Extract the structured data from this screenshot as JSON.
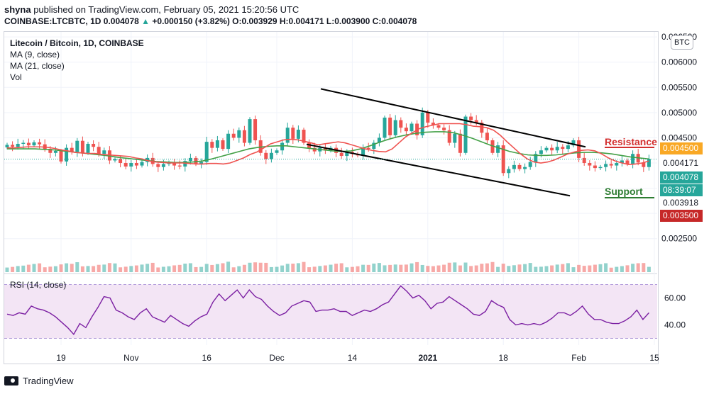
{
  "header": {
    "publisher": "shyna",
    "published_text": " published on TradingView.com, February 05, 2021 15:20:56 UTC",
    "symbol_line_pre": "COINBASE:LTCBTC, 1D 0.004078 ",
    "arrow": "▲",
    "symbol_line_post": "+0.000150 (+3.82%) O:0.003929 H:0.004171 L:0.003900 C:0.004078"
  },
  "legend": {
    "title": "Litecoin / Bitcoin, 1D, COINBASE",
    "ma9": "MA (9, close)",
    "ma21": "MA (21, close)",
    "vol": "Vol"
  },
  "currency_button": "BTC",
  "annotations": {
    "resistance": "Resistance",
    "support": "Support"
  },
  "price_tags": {
    "resistance": "0.004500",
    "high": "0.004171",
    "current": "0.004078",
    "countdown": "08:39:07",
    "ma": "0.003918",
    "support": "0.003500"
  },
  "rsi_label": "RSI (14, close)",
  "brand": "TradingView",
  "colors": {
    "up": "#26a69a",
    "down": "#ef5350",
    "ma9": "#ef5350",
    "ma21": "#43a047",
    "rsi": "#7b1fa2",
    "rsi_band": "#f3e5f5",
    "resistance": "#d32f2f",
    "support": "#2e7d32"
  },
  "chart_data": {
    "type": "candlestick",
    "title": "Litecoin / Bitcoin, 1D, COINBASE",
    "price_axis": {
      "ticks": [
        0.0025,
        0.003,
        0.0035,
        0.004,
        0.0045,
        0.005,
        0.0055,
        0.006,
        0.0065
      ],
      "tick_labels": [
        "0.002500",
        "",
        "0.003500",
        "",
        "0.004500",
        "0.005000",
        "0.005500",
        "0.006000",
        "0.006500"
      ],
      "range": [
        0.00185,
        0.0066
      ]
    },
    "time_axis": {
      "labels": [
        "19",
        "Nov",
        "16",
        "Dec",
        "14",
        "2021",
        "18",
        "Feb",
        "15"
      ],
      "label_index": [
        10,
        23,
        37,
        50,
        64,
        78,
        92,
        106,
        120
      ],
      "bar_count": 120
    },
    "close": [
      0.00436,
      0.00432,
      0.00438,
      0.0044,
      0.00435,
      0.00441,
      0.00437,
      0.00428,
      0.0042,
      0.00424,
      0.00403,
      0.0043,
      0.00422,
      0.00444,
      0.0042,
      0.00438,
      0.00432,
      0.00418,
      0.00425,
      0.00405,
      0.00408,
      0.004,
      0.00393,
      0.004,
      0.00395,
      0.00402,
      0.0041,
      0.00398,
      0.00392,
      0.00398,
      0.00401,
      0.00395,
      0.00393,
      0.00404,
      0.0041,
      0.00398,
      0.00402,
      0.00442,
      0.0043,
      0.00445,
      0.00428,
      0.00458,
      0.0045,
      0.00465,
      0.0044,
      0.00487,
      0.00445,
      0.0042,
      0.00408,
      0.0042,
      0.00425,
      0.0044,
      0.0047,
      0.00448,
      0.00466,
      0.0044,
      0.0043,
      0.00423,
      0.0043,
      0.00425,
      0.0043,
      0.0042,
      0.00414,
      0.00422,
      0.00418,
      0.00415,
      0.0043,
      0.00428,
      0.0044,
      0.0045,
      0.0049,
      0.00455,
      0.00485,
      0.0047,
      0.00463,
      0.00478,
      0.00455,
      0.005,
      0.0048,
      0.00475,
      0.0047,
      0.00465,
      0.0044,
      0.00458,
      0.0042,
      0.00492,
      0.00485,
      0.0048,
      0.0046,
      0.00445,
      0.0042,
      0.00435,
      0.0038,
      0.00388,
      0.00396,
      0.00388,
      0.00392,
      0.00402,
      0.00418,
      0.00425,
      0.0043,
      0.00425,
      0.00432,
      0.00428,
      0.00435,
      0.00445,
      0.0041,
      0.004,
      0.00395,
      0.0039,
      0.00392,
      0.00398,
      0.00395,
      0.004,
      0.00405,
      0.00398,
      0.00418,
      0.00401,
      0.00392,
      0.00408
    ],
    "ma9": [
      0.0043,
      0.0043,
      0.00431,
      0.00432,
      0.00432,
      0.00432,
      0.00431,
      0.00429,
      0.00426,
      0.00424,
      0.00421,
      0.0042,
      0.00419,
      0.00419,
      0.00417,
      0.00416,
      0.00415,
      0.00414,
      0.00413,
      0.0041,
      0.00408,
      0.00404,
      0.00402,
      0.00401,
      0.004,
      0.004,
      0.004,
      0.00399,
      0.00398,
      0.00398,
      0.00399,
      0.00399,
      0.00398,
      0.004,
      0.00405,
      0.0041,
      0.00417,
      0.00422,
      0.0043,
      0.00438,
      0.00442,
      0.00446,
      0.00447,
      0.00446,
      0.00443,
      0.0044,
      0.00436,
      0.00438,
      0.0044,
      0.00442,
      0.0044,
      0.00436,
      0.00432,
      0.00428,
      0.00425,
      0.00423,
      0.00422,
      0.00428,
      0.0044,
      0.00452,
      0.0046,
      0.00468,
      0.00472,
      0.00475,
      0.00478,
      0.00478,
      0.00478,
      0.00478,
      0.00476,
      0.00473,
      0.00472,
      0.0047,
      0.00465,
      0.00455,
      0.00442,
      0.0043,
      0.00418,
      0.00408,
      0.00402,
      0.004,
      0.00402,
      0.00406,
      0.00412,
      0.00418,
      0.00422,
      0.00425,
      0.00426,
      0.00424,
      0.00418,
      0.0041,
      0.00404,
      0.004,
      0.00397,
      0.00398,
      0.004,
      0.00404
    ],
    "ma21": [
      0.00428,
      0.00428,
      0.00428,
      0.00428,
      0.00427,
      0.00426,
      0.00424,
      0.00422,
      0.0042,
      0.00418,
      0.00416,
      0.00414,
      0.00411,
      0.00409,
      0.00407,
      0.00405,
      0.00403,
      0.00402,
      0.00401,
      0.00401,
      0.00402,
      0.00404,
      0.00408,
      0.00413,
      0.00418,
      0.00423,
      0.00428,
      0.00431,
      0.00433,
      0.00434,
      0.00434,
      0.00432,
      0.0043,
      0.00428,
      0.00426,
      0.00424,
      0.00423,
      0.00424,
      0.00428,
      0.00434,
      0.00441,
      0.00447,
      0.00452,
      0.00456,
      0.00459,
      0.00461,
      0.00462,
      0.00462,
      0.0046,
      0.00455,
      0.00449,
      0.00442,
      0.00435,
      0.00429,
      0.00423,
      0.00419,
      0.00416,
      0.00415,
      0.00415,
      0.00416,
      0.00418,
      0.0042,
      0.00421,
      0.00421,
      0.0042,
      0.00418,
      0.00415,
      0.00412,
      0.0041,
      0.00408
    ],
    "rsi_axis": {
      "ticks": [
        40,
        60
      ],
      "tick_labels": [
        "40.00",
        "60.00"
      ],
      "band": [
        30,
        70
      ],
      "range": [
        25,
        75
      ]
    },
    "rsi": [
      48,
      47,
      49,
      48,
      54,
      52,
      51,
      49,
      46,
      42,
      38,
      33,
      41,
      38,
      46,
      53,
      61,
      60,
      51,
      49,
      46,
      44,
      49,
      52,
      46,
      44,
      42,
      47,
      44,
      41,
      39,
      43,
      46,
      48,
      57,
      63,
      58,
      62,
      66,
      60,
      66,
      61,
      59,
      54,
      50,
      47,
      49,
      54,
      56,
      58,
      57,
      50,
      51,
      51,
      52,
      50,
      50,
      47,
      49,
      51,
      50,
      52,
      55,
      57,
      63,
      69,
      65,
      60,
      62,
      58,
      52,
      56,
      57,
      61,
      58,
      55,
      52,
      48,
      47,
      50,
      58,
      55,
      53,
      44,
      40,
      41,
      40,
      41,
      40,
      42,
      45,
      49,
      49,
      47,
      50,
      54,
      48,
      44,
      44,
      42,
      41,
      41,
      43,
      46,
      51,
      44,
      49
    ]
  }
}
